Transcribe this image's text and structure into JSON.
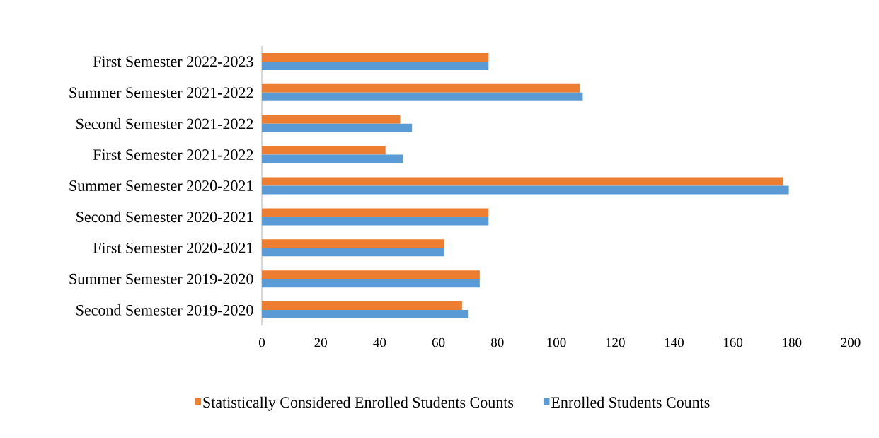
{
  "chart_data": {
    "type": "bar",
    "orientation": "horizontal",
    "categories": [
      "First Semester 2022-2023",
      "Summer Semester 2021-2022",
      "Second Semester 2021-2022",
      "First Semester 2021-2022",
      "Summer Semester 2020-2021",
      "Second Semester 2020-2021",
      "First Semester 2020-2021",
      "Summer Semester 2019-2020",
      "Second Semester 2019-2020"
    ],
    "series": [
      {
        "name": "Statistically Considered Enrolled Students Counts",
        "color": "#ed7d31",
        "values": [
          77,
          108,
          47,
          42,
          177,
          77,
          62,
          74,
          68
        ]
      },
      {
        "name": "Enrolled Students Counts",
        "color": "#5b9bd5",
        "values": [
          77,
          109,
          51,
          48,
          179,
          77,
          62,
          74,
          70
        ]
      }
    ],
    "xlim": [
      0,
      200
    ],
    "xticks": [
      0,
      20,
      40,
      60,
      80,
      100,
      120,
      140,
      160,
      180,
      200
    ],
    "grid": false,
    "legend": "bottom"
  }
}
